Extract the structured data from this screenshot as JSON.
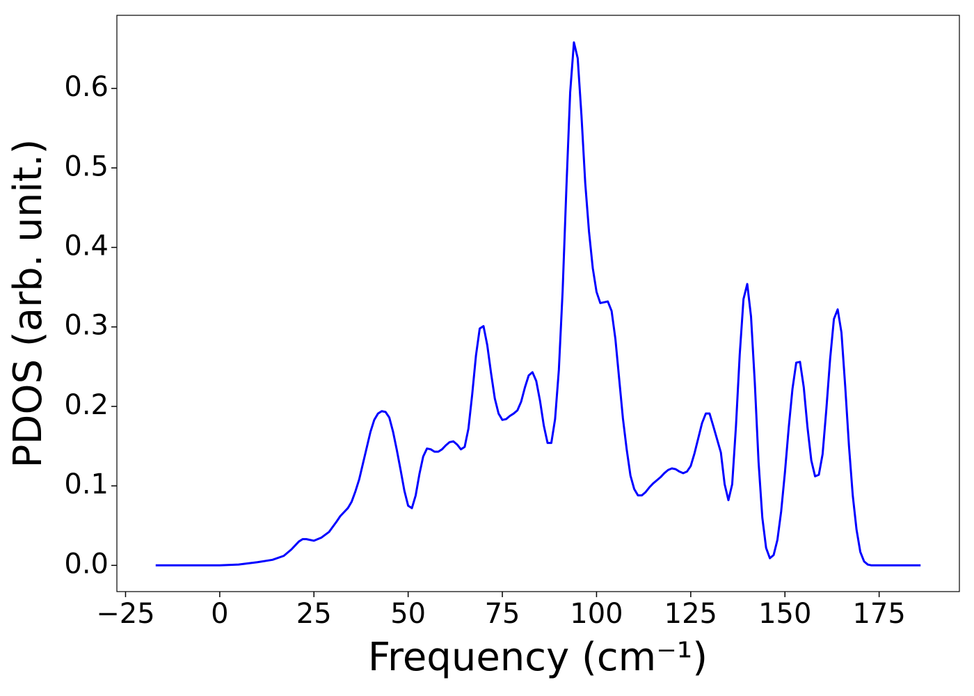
{
  "chart_data": {
    "type": "line",
    "xlabel": "Frequency (cm⁻¹)",
    "ylabel": "PDOS (arb. unit.)",
    "xlim": [
      -27.3,
      196.3
    ],
    "ylim": [
      -0.033,
      0.692
    ],
    "xticks": [
      {
        "value": -25,
        "label": "−25"
      },
      0,
      25,
      50,
      75,
      100,
      125,
      150,
      175
    ],
    "yticks": [
      {
        "value": 0,
        "label": "0.0"
      },
      0.1,
      0.2,
      0.3,
      0.4,
      0.5,
      0.6
    ],
    "grid": false,
    "x": [
      -17,
      0,
      5,
      10,
      14,
      17,
      19,
      21,
      22,
      23,
      25,
      27,
      29,
      31,
      32,
      34,
      35,
      36,
      37,
      38,
      39,
      40,
      41,
      42,
      43,
      44,
      45,
      46,
      47,
      48,
      49,
      50,
      51,
      52,
      53,
      54,
      55,
      56,
      57,
      58,
      59,
      60,
      61,
      62,
      63,
      64,
      65,
      66,
      67,
      68,
      69,
      70,
      71,
      72,
      73,
      74,
      75,
      76,
      77,
      78,
      79,
      80,
      81,
      82,
      83,
      84,
      85,
      86,
      87,
      88,
      89,
      90,
      91,
      92,
      93,
      94,
      95,
      96,
      97,
      98,
      99,
      100,
      101,
      102,
      103,
      104,
      105,
      106,
      107,
      108,
      109,
      110,
      111,
      112,
      113,
      114,
      115,
      116,
      117,
      118,
      119,
      120,
      121,
      122,
      123,
      124,
      125,
      126,
      127,
      128,
      129,
      130,
      131,
      133,
      134,
      135,
      136,
      137,
      138,
      139,
      140,
      141,
      142,
      143,
      144,
      145,
      146,
      147,
      148,
      149,
      150,
      151,
      152,
      153,
      154,
      155,
      156,
      157,
      158,
      159,
      160,
      161,
      162,
      163,
      164,
      165,
      166,
      167,
      168,
      169,
      170,
      171,
      172,
      173,
      186
    ],
    "series": [
      {
        "color": "#0000ff",
        "values": [
          0,
          0,
          0.001,
          0.004,
          0.007,
          0.012,
          0.02,
          0.03,
          0.033,
          0.033,
          0.031,
          0.035,
          0.042,
          0.055,
          0.062,
          0.072,
          0.08,
          0.093,
          0.108,
          0.128,
          0.148,
          0.168,
          0.183,
          0.191,
          0.194,
          0.193,
          0.186,
          0.168,
          0.145,
          0.12,
          0.094,
          0.075,
          0.072,
          0.088,
          0.115,
          0.137,
          0.147,
          0.146,
          0.143,
          0.143,
          0.146,
          0.151,
          0.155,
          0.156,
          0.152,
          0.146,
          0.149,
          0.172,
          0.215,
          0.264,
          0.298,
          0.301,
          0.277,
          0.242,
          0.21,
          0.191,
          0.183,
          0.184,
          0.188,
          0.191,
          0.195,
          0.206,
          0.224,
          0.239,
          0.243,
          0.232,
          0.207,
          0.176,
          0.154,
          0.154,
          0.184,
          0.246,
          0.345,
          0.475,
          0.595,
          0.658,
          0.638,
          0.566,
          0.481,
          0.42,
          0.374,
          0.344,
          0.33,
          0.331,
          0.332,
          0.32,
          0.285,
          0.235,
          0.185,
          0.146,
          0.113,
          0.096,
          0.088,
          0.088,
          0.092,
          0.098,
          0.103,
          0.107,
          0.111,
          0.116,
          0.12,
          0.122,
          0.121,
          0.118,
          0.116,
          0.118,
          0.125,
          0.141,
          0.16,
          0.179,
          0.191,
          0.191,
          0.175,
          0.142,
          0.102,
          0.082,
          0.102,
          0.175,
          0.265,
          0.335,
          0.354,
          0.313,
          0.23,
          0.13,
          0.06,
          0.022,
          0.009,
          0.013,
          0.032,
          0.068,
          0.117,
          0.173,
          0.222,
          0.255,
          0.256,
          0.224,
          0.173,
          0.132,
          0.112,
          0.114,
          0.14,
          0.197,
          0.26,
          0.31,
          0.322,
          0.293,
          0.225,
          0.15,
          0.088,
          0.045,
          0.017,
          0.005,
          0.001,
          0,
          0
        ]
      }
    ]
  }
}
